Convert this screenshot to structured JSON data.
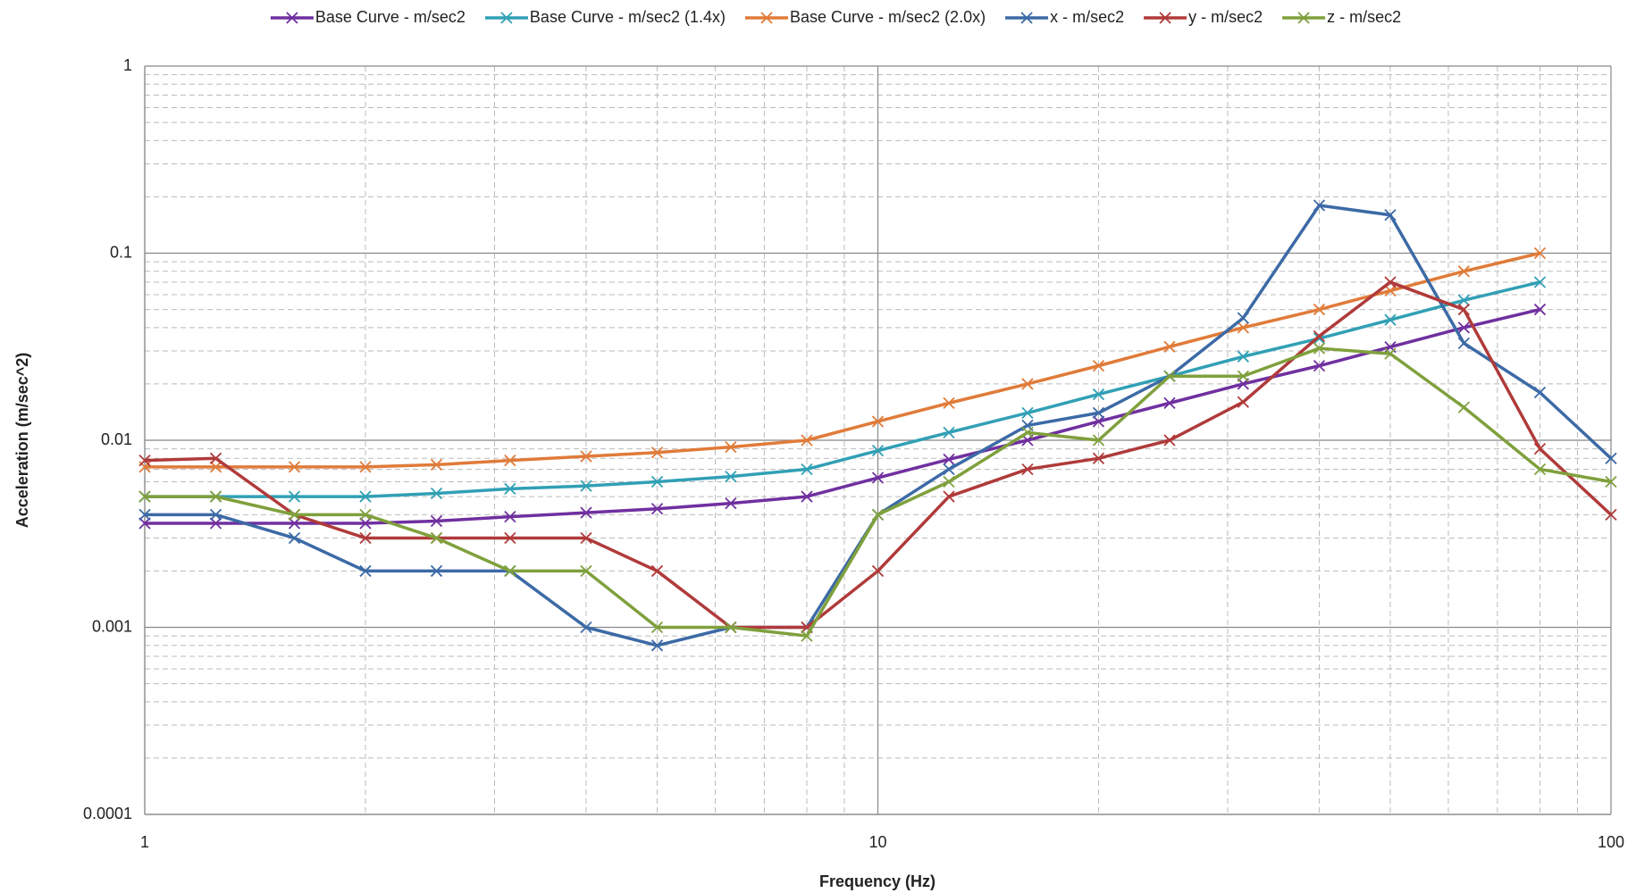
{
  "chart_data": {
    "type": "line",
    "x_label": "Frequency (Hz)",
    "y_label": "Acceleration  (m/sec^2)",
    "x": [
      1,
      1.25,
      1.6,
      2,
      2.5,
      3.15,
      4,
      5,
      6.3,
      8,
      10,
      12.5,
      16,
      20,
      25,
      31.5,
      40,
      50,
      63,
      80,
      100
    ],
    "series": [
      {
        "name": "Base Curve - m/sec2",
        "color": "#7030a0",
        "values": [
          0.0036,
          0.0036,
          0.0036,
          0.0036,
          0.0037,
          0.0039,
          0.0041,
          0.0043,
          0.0046,
          0.005,
          0.0063,
          0.0079,
          0.01,
          0.0126,
          0.0158,
          0.02,
          0.025,
          0.0315,
          0.04,
          0.05,
          null
        ]
      },
      {
        "name": "Base Curve - m/sec2 (1.4x)",
        "color": "#31a0b5",
        "values": [
          0.005,
          0.005,
          0.005,
          0.005,
          0.0052,
          0.0055,
          0.0057,
          0.006,
          0.0064,
          0.007,
          0.0088,
          0.011,
          0.014,
          0.0176,
          0.022,
          0.028,
          0.035,
          0.044,
          0.056,
          0.07,
          null
        ]
      },
      {
        "name": "Base Curve - m/sec2 (2.0x)",
        "color": "#e07b39",
        "values": [
          0.0072,
          0.0072,
          0.0072,
          0.0072,
          0.0074,
          0.0078,
          0.0082,
          0.0086,
          0.0092,
          0.01,
          0.0126,
          0.0158,
          0.02,
          0.025,
          0.0316,
          0.04,
          0.05,
          0.063,
          0.08,
          0.1,
          null
        ]
      },
      {
        "name": "x - m/sec2",
        "color": "#3c6aa6",
        "values": [
          0.004,
          0.004,
          0.003,
          0.002,
          0.002,
          0.002,
          0.001,
          0.0008,
          0.001,
          0.001,
          0.004,
          0.007,
          0.012,
          0.014,
          0.022,
          0.045,
          0.18,
          0.16,
          0.033,
          0.018,
          0.008
        ]
      },
      {
        "name": "y - m/sec2",
        "color": "#b03a3a",
        "values": [
          0.0078,
          0.008,
          0.004,
          0.003,
          0.003,
          0.003,
          0.003,
          0.002,
          0.001,
          0.001,
          0.002,
          0.005,
          0.007,
          0.008,
          0.01,
          0.016,
          0.036,
          0.07,
          0.05,
          0.009,
          0.004
        ]
      },
      {
        "name": "z - m/sec2",
        "color": "#7fa03c",
        "values": [
          0.005,
          0.005,
          0.004,
          0.004,
          0.003,
          0.002,
          0.002,
          0.001,
          0.001,
          0.0009,
          0.004,
          0.006,
          0.011,
          0.01,
          0.022,
          0.022,
          0.031,
          0.029,
          0.015,
          0.007,
          0.006
        ]
      }
    ],
    "xlim": [
      1,
      100
    ],
    "xticks": [
      1,
      10,
      100
    ],
    "ylim": [
      0.0001,
      1
    ],
    "yticks": [
      0.0001,
      0.001,
      0.01,
      0.1,
      1
    ],
    "log_x": true,
    "log_y": true,
    "grid": true,
    "minor_grid": true,
    "legend": "top"
  }
}
